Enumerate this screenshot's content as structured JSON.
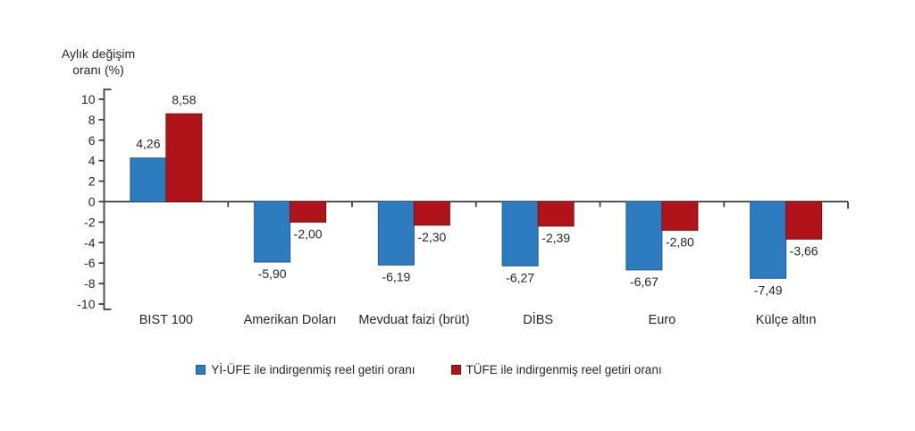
{
  "chart_data": {
    "type": "bar",
    "title": "",
    "ylabel": "Aylık değişim oranı (%)",
    "xlabel": "",
    "categories": [
      "BIST 100",
      "Amerikan Doları",
      "Mevduat faizi (brüt)",
      "DİBS",
      "Euro",
      "Külçe altın"
    ],
    "series": [
      {
        "name": "Yİ-ÜFE ile indirgenmiş reel getiri oranı",
        "color": "#2E7CC0",
        "border_color": "#1E5A8E",
        "values": [
          4.26,
          -5.9,
          -6.19,
          -6.27,
          -6.67,
          -7.49
        ],
        "value_labels": [
          "4,26",
          "-5,90",
          "-6,19",
          "-6,27",
          "-6,67",
          "-7,49"
        ]
      },
      {
        "name": "TÜFE ile indirgenmiş reel getiri oranı",
        "color": "#B0141A",
        "border_color": "#7C0E12",
        "values": [
          8.58,
          -2.0,
          -2.3,
          -2.39,
          -2.8,
          -3.66
        ],
        "value_labels": [
          "8,58",
          "-2,00",
          "-2,30",
          "-2,39",
          "-2,80",
          "-3,66"
        ]
      }
    ],
    "ylim": [
      -10,
      10
    ],
    "ytick_step": 2,
    "ytick_labels": [
      "10",
      "8",
      "6",
      "4",
      "2",
      "0",
      "-2",
      "-4",
      "-6",
      "-8",
      "-10"
    ],
    "grid": false,
    "legend_position": "bottom",
    "axis_color": "#3F3F3F",
    "text_color": "#262626"
  }
}
